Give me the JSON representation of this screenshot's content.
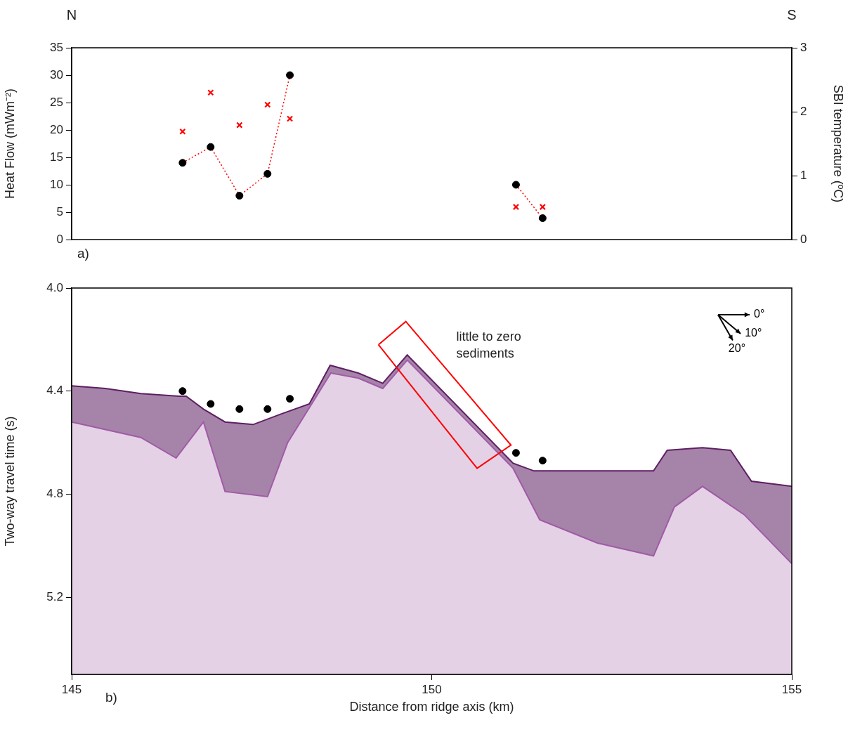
{
  "chart_data": [
    {
      "type": "scatter",
      "title_left": "N",
      "title_right": "S",
      "panel": "a)",
      "ylabel": "Heat Flow (mWm⁻²)",
      "y2label": "SBI temperature (ºC)",
      "xlim": [
        145,
        155
      ],
      "ylim": [
        0,
        35
      ],
      "yticks": [
        0,
        5,
        10,
        15,
        20,
        25,
        30,
        35
      ],
      "y2lim": [
        0,
        3
      ],
      "y2ticks": [
        0,
        1,
        2,
        3
      ],
      "grid": false,
      "series": [
        {
          "type": "line",
          "axis": "y",
          "marker": "circle",
          "color": "black",
          "line_style": "dotted",
          "x": [
            146.54,
            146.93,
            147.33,
            147.72,
            148.03
          ],
          "values": [
            14,
            16.9,
            8,
            12,
            30
          ]
        },
        {
          "type": "line",
          "axis": "y",
          "marker": "circle",
          "color": "black",
          "line_style": "dotted",
          "x": [
            151.17,
            151.54
          ],
          "values": [
            10,
            3.9
          ]
        },
        {
          "type": "scatter",
          "axis": "y2",
          "marker": "x",
          "color": "red",
          "x": [
            146.54,
            146.93,
            147.33,
            147.72,
            148.03,
            151.17,
            151.54
          ],
          "values": [
            1.69,
            2.3,
            1.79,
            2.11,
            1.89,
            0.51,
            0.51
          ]
        }
      ]
    },
    {
      "type": "line",
      "panel": "b)",
      "xlabel": "Distance from ridge axis (km)",
      "ylabel": "Two-way travel time (s)",
      "xlim": [
        145,
        155
      ],
      "xticks": [
        145,
        150,
        155
      ],
      "ylim": [
        5.5,
        4.0
      ],
      "yticks": [
        {
          "value": 4.0,
          "label": "4.0"
        },
        4.4,
        4.8,
        5.2
      ],
      "grid": false,
      "series": [
        {
          "type": "line",
          "color": "#5e1f63",
          "line_style": "solid",
          "x": [
            145,
            145.47,
            145.96,
            146.49,
            146.59,
            146.83,
            147.13,
            147.52,
            147.9,
            148.3,
            148.59,
            148.98,
            149.32,
            149.66,
            151.13,
            151.42,
            153.08,
            153.27,
            153.76,
            154.15,
            154.44,
            155
          ],
          "values": [
            4.38,
            4.39,
            4.41,
            4.42,
            4.42,
            4.47,
            4.52,
            4.53,
            4.49,
            4.45,
            4.3,
            4.33,
            4.37,
            4.26,
            4.68,
            4.71,
            4.71,
            4.63,
            4.62,
            4.63,
            4.75,
            4.77
          ]
        },
        {
          "type": "line",
          "color": "#a05aa6",
          "line_style": "solid",
          "x": [
            145,
            145.96,
            146.45,
            146.83,
            147.13,
            147.72,
            148.0,
            148.6,
            148.98,
            149.32,
            149.66,
            151.13,
            151.5,
            152.3,
            153.08,
            153.37,
            153.76,
            154.34,
            155
          ],
          "values": [
            4.52,
            4.58,
            4.66,
            4.52,
            4.79,
            4.81,
            4.6,
            4.33,
            4.35,
            4.39,
            4.28,
            4.7,
            4.9,
            4.99,
            5.04,
            4.85,
            4.77,
            4.88,
            5.07
          ]
        },
        {
          "type": "scatter",
          "marker": "circle",
          "color": "black",
          "x": [
            146.54,
            146.93,
            147.33,
            147.72,
            148.03,
            151.17,
            151.54
          ],
          "values": [
            4.4,
            4.45,
            4.47,
            4.47,
            4.43,
            4.64,
            4.67
          ]
        }
      ],
      "annotations": [
        {
          "text": "little to zero sediments",
          "color": "red",
          "x": [
            149.26,
            149.64,
            151.1,
            150.63
          ],
          "y": [
            4.22,
            4.13,
            4.61,
            4.7
          ]
        }
      ],
      "dip_arrows": [
        {
          "value": 0,
          "label": "0°"
        },
        {
          "value": 10,
          "label": "10°"
        },
        {
          "value": 20,
          "label": "20°"
        }
      ]
    }
  ]
}
